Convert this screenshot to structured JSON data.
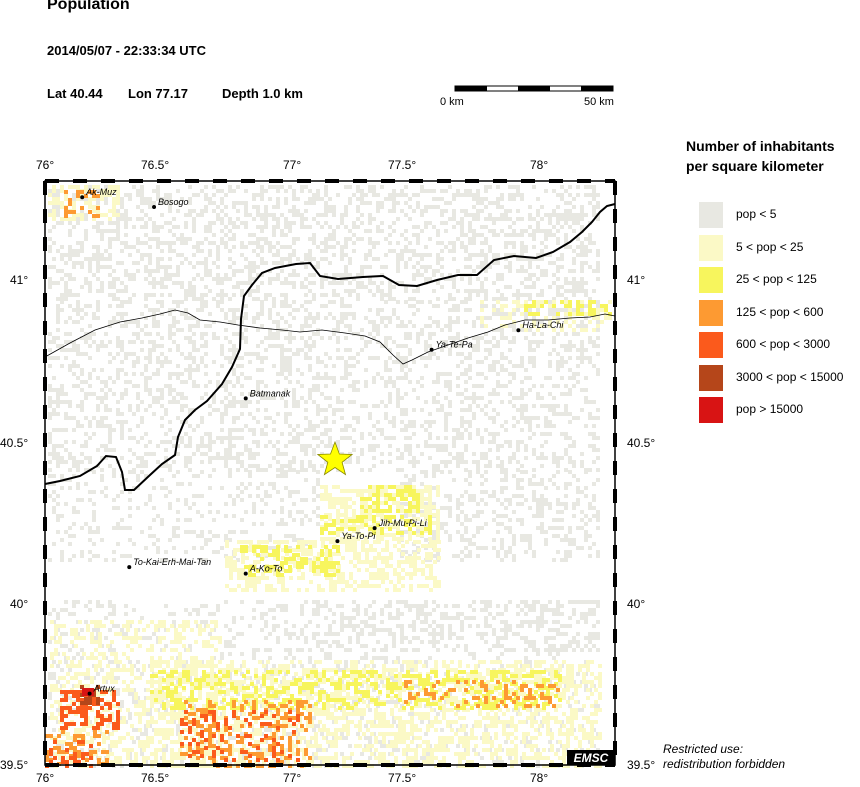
{
  "header": {
    "title": "Population",
    "datetime": "2014/05/07 - 22:33:34 UTC",
    "lat": "Lat 40.44",
    "lon": "Lon  77.17",
    "depth": "Depth  1.0 km"
  },
  "scale": {
    "start_label": "0 km",
    "end_label": "50 km"
  },
  "map": {
    "lon_range": [
      76.0,
      78.3
    ],
    "lat_range": [
      39.5,
      41.3
    ],
    "lon_ticks": [
      "76°",
      "76.5°",
      "77°",
      "77.5°",
      "78°"
    ],
    "lat_ticks": [
      "41°",
      "40.5°",
      "40°",
      "39.5°"
    ],
    "epicenter": {
      "lon": 77.17,
      "lat": 40.44,
      "color": "#ffff00"
    },
    "cities": [
      {
        "name": "Ak-Muz",
        "lon": 76.15,
        "lat": 41.25
      },
      {
        "name": "Bosogo",
        "lon": 76.44,
        "lat": 41.22
      },
      {
        "name": "Batmanak",
        "lon": 76.81,
        "lat": 40.63
      },
      {
        "name": "Ya-Te-Pa",
        "lon": 77.56,
        "lat": 40.78
      },
      {
        "name": "Ha-La-Chi",
        "lon": 77.91,
        "lat": 40.84
      },
      {
        "name": "Jih-Mu-Pi-Li",
        "lon": 77.33,
        "lat": 40.23
      },
      {
        "name": "Ya-To-Pi",
        "lon": 77.18,
        "lat": 40.19
      },
      {
        "name": "To-Kai-Erh-Mai-Tan",
        "lon": 76.34,
        "lat": 40.11
      },
      {
        "name": "A-Ko-To",
        "lon": 76.81,
        "lat": 40.09
      },
      {
        "name": "Artux",
        "lon": 76.18,
        "lat": 39.72
      }
    ],
    "logo_text": "EMSC"
  },
  "legend": {
    "title_line1": "Number of inhabitants",
    "title_line2": "per square kilometer",
    "items": [
      {
        "label": "pop < 5",
        "color": "#e8e8e2"
      },
      {
        "label": "5 < pop < 25",
        "color": "#fbf9c6"
      },
      {
        "label": "25 < pop < 125",
        "color": "#f7f55d"
      },
      {
        "label": "125 < pop < 600",
        "color": "#fd9a32"
      },
      {
        "label": "600 < pop < 3000",
        "color": "#fb5a1c"
      },
      {
        "label": "3000 < pop < 15000",
        "color": "#b5461a"
      },
      {
        "label": "pop > 15000",
        "color": "#d81414"
      }
    ]
  },
  "footer": {
    "restricted_line1": "Restricted use:",
    "restricted_line2": "redistribution forbidden"
  }
}
